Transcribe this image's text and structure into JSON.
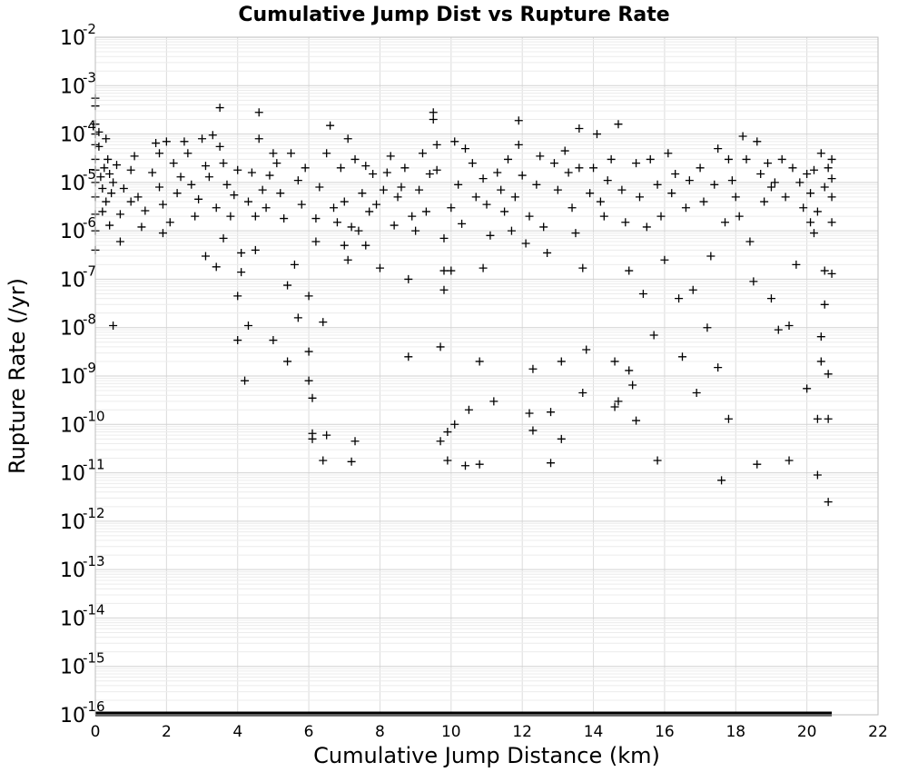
{
  "chart_data": {
    "type": "scatter",
    "title": "Cumulative Jump Dist vs Rupture Rate",
    "xlabel": "Cumulative Jump Distance (km)",
    "ylabel": "Rupture Rate (/yr)",
    "xlim": [
      0,
      22
    ],
    "ylim": [
      1e-16,
      0.01
    ],
    "xscale": "linear",
    "yscale": "log",
    "grid": true,
    "legend": "none",
    "marker": "plus",
    "color": "#000000",
    "xticks": [
      0,
      2,
      4,
      6,
      8,
      10,
      12,
      14,
      16,
      18,
      20,
      22
    ],
    "yticks": [
      {
        "value": 0.01,
        "base": "10",
        "exp": "-2"
      },
      {
        "value": 0.001,
        "base": "10",
        "exp": "-3"
      },
      {
        "value": 0.0001,
        "base": "10",
        "exp": "-4"
      },
      {
        "value": 1e-05,
        "base": "10",
        "exp": "-5"
      },
      {
        "value": 1e-06,
        "base": "10",
        "exp": "-6"
      },
      {
        "value": 1e-07,
        "base": "10",
        "exp": "-7"
      },
      {
        "value": 1e-08,
        "base": "10",
        "exp": "-8"
      },
      {
        "value": 1e-09,
        "base": "10",
        "exp": "-9"
      },
      {
        "value": 1e-10,
        "base": "10",
        "exp": "-10"
      },
      {
        "value": 1e-11,
        "base": "10",
        "exp": "-11"
      },
      {
        "value": 1e-12,
        "base": "10",
        "exp": "-12"
      },
      {
        "value": 1e-13,
        "base": "10",
        "exp": "-13"
      },
      {
        "value": 1e-14,
        "base": "10",
        "exp": "-14"
      },
      {
        "value": 1e-15,
        "base": "10",
        "exp": "-15"
      },
      {
        "value": 1e-16,
        "base": "10",
        "exp": "-16"
      }
    ],
    "floor_band": {
      "x": [
        0,
        20.7
      ],
      "y": 1e-16
    },
    "points": [
      {
        "x": 0.0,
        "y": 0.00055
      },
      {
        "x": 0.0,
        "y": 0.00038
      },
      {
        "x": 0.0,
        "y": 0.00016
      },
      {
        "x": 0.0,
        "y": 0.0001
      },
      {
        "x": 0.0,
        "y": 6e-05
      },
      {
        "x": 0.0,
        "y": 3e-05
      },
      {
        "x": 0.0,
        "y": 1.8e-05
      },
      {
        "x": 0.0,
        "y": 1e-05
      },
      {
        "x": 0.0,
        "y": 5e-06
      },
      {
        "x": 0.0,
        "y": 2.2e-06
      },
      {
        "x": 0.0,
        "y": 1e-06
      },
      {
        "x": 0.0,
        "y": 4e-07
      },
      {
        "x": 0.1,
        "y": 0.00011
      },
      {
        "x": 0.1,
        "y": 5.5e-05
      },
      {
        "x": 0.15,
        "y": 1.3e-05
      },
      {
        "x": 0.2,
        "y": 2.5e-06
      },
      {
        "x": 0.2,
        "y": 7.5e-06
      },
      {
        "x": 0.25,
        "y": 2e-05
      },
      {
        "x": 0.3,
        "y": 8e-05
      },
      {
        "x": 0.3,
        "y": 4e-06
      },
      {
        "x": 0.35,
        "y": 3e-05
      },
      {
        "x": 0.4,
        "y": 1.3e-06
      },
      {
        "x": 0.4,
        "y": 1.5e-05
      },
      {
        "x": 0.45,
        "y": 6e-06
      },
      {
        "x": 0.5,
        "y": 1.1e-08
      },
      {
        "x": 0.5,
        "y": 1e-05
      },
      {
        "x": 0.6,
        "y": 2.3e-05
      },
      {
        "x": 0.7,
        "y": 6e-07
      },
      {
        "x": 0.7,
        "y": 2.2e-06
      },
      {
        "x": 0.8,
        "y": 7.5e-06
      },
      {
        "x": 1.0,
        "y": 1.8e-05
      },
      {
        "x": 1.0,
        "y": 4e-06
      },
      {
        "x": 1.1,
        "y": 3.5e-05
      },
      {
        "x": 1.2,
        "y": 5e-06
      },
      {
        "x": 1.3,
        "y": 1.2e-06
      },
      {
        "x": 1.4,
        "y": 2.6e-06
      },
      {
        "x": 1.6,
        "y": 1.6e-05
      },
      {
        "x": 1.7,
        "y": 6.5e-05
      },
      {
        "x": 1.8,
        "y": 4e-05
      },
      {
        "x": 1.8,
        "y": 8e-06
      },
      {
        "x": 1.9,
        "y": 3.5e-06
      },
      {
        "x": 1.9,
        "y": 9e-07
      },
      {
        "x": 2.0,
        "y": 7e-05
      },
      {
        "x": 2.1,
        "y": 1.5e-06
      },
      {
        "x": 2.2,
        "y": 2.5e-05
      },
      {
        "x": 2.3,
        "y": 6e-06
      },
      {
        "x": 2.4,
        "y": 1.3e-05
      },
      {
        "x": 2.5,
        "y": 7e-05
      },
      {
        "x": 2.6,
        "y": 4e-05
      },
      {
        "x": 2.7,
        "y": 9e-06
      },
      {
        "x": 2.8,
        "y": 2e-06
      },
      {
        "x": 2.9,
        "y": 4.5e-06
      },
      {
        "x": 3.0,
        "y": 8e-05
      },
      {
        "x": 3.1,
        "y": 2.2e-05
      },
      {
        "x": 3.1,
        "y": 3e-07
      },
      {
        "x": 3.2,
        "y": 1.3e-05
      },
      {
        "x": 3.3,
        "y": 9.5e-05
      },
      {
        "x": 3.4,
        "y": 3e-06
      },
      {
        "x": 3.4,
        "y": 1.8e-07
      },
      {
        "x": 3.5,
        "y": 0.00035
      },
      {
        "x": 3.5,
        "y": 5.5e-05
      },
      {
        "x": 3.6,
        "y": 2.5e-05
      },
      {
        "x": 3.6,
        "y": 7e-07
      },
      {
        "x": 3.7,
        "y": 9e-06
      },
      {
        "x": 3.8,
        "y": 2e-06
      },
      {
        "x": 3.9,
        "y": 5.5e-06
      },
      {
        "x": 4.0,
        "y": 1.8e-05
      },
      {
        "x": 4.0,
        "y": 4.5e-08
      },
      {
        "x": 4.0,
        "y": 5.5e-09
      },
      {
        "x": 4.1,
        "y": 3.5e-07
      },
      {
        "x": 4.1,
        "y": 1.4e-07
      },
      {
        "x": 4.2,
        "y": 8e-10
      },
      {
        "x": 4.3,
        "y": 1.1e-08
      },
      {
        "x": 4.3,
        "y": 4e-06
      },
      {
        "x": 4.4,
        "y": 1.6e-05
      },
      {
        "x": 4.5,
        "y": 2e-06
      },
      {
        "x": 4.5,
        "y": 4e-07
      },
      {
        "x": 4.6,
        "y": 0.00028
      },
      {
        "x": 4.6,
        "y": 8e-05
      },
      {
        "x": 4.7,
        "y": 7e-06
      },
      {
        "x": 4.8,
        "y": 3e-06
      },
      {
        "x": 4.9,
        "y": 1.4e-05
      },
      {
        "x": 5.0,
        "y": 4e-05
      },
      {
        "x": 5.0,
        "y": 5.5e-09
      },
      {
        "x": 5.1,
        "y": 2.5e-05
      },
      {
        "x": 5.2,
        "y": 6e-06
      },
      {
        "x": 5.3,
        "y": 1.8e-06
      },
      {
        "x": 5.4,
        "y": 7.5e-08
      },
      {
        "x": 5.4,
        "y": 2e-09
      },
      {
        "x": 5.5,
        "y": 4e-05
      },
      {
        "x": 5.6,
        "y": 2e-07
      },
      {
        "x": 5.7,
        "y": 1.6e-08
      },
      {
        "x": 5.7,
        "y": 1.1e-05
      },
      {
        "x": 5.8,
        "y": 3.5e-06
      },
      {
        "x": 5.9,
        "y": 2e-05
      },
      {
        "x": 6.0,
        "y": 4.5e-08
      },
      {
        "x": 6.0,
        "y": 3.2e-09
      },
      {
        "x": 6.0,
        "y": 8e-10
      },
      {
        "x": 6.1,
        "y": 3.5e-10
      },
      {
        "x": 6.1,
        "y": 6.5e-11
      },
      {
        "x": 6.1,
        "y": 5e-11
      },
      {
        "x": 6.2,
        "y": 6e-07
      },
      {
        "x": 6.2,
        "y": 1.8e-06
      },
      {
        "x": 6.3,
        "y": 8e-06
      },
      {
        "x": 6.4,
        "y": 1.3e-08
      },
      {
        "x": 6.4,
        "y": 1.8e-11
      },
      {
        "x": 6.5,
        "y": 4e-05
      },
      {
        "x": 6.5,
        "y": 6e-11
      },
      {
        "x": 6.6,
        "y": 0.00015
      },
      {
        "x": 6.7,
        "y": 3e-06
      },
      {
        "x": 6.8,
        "y": 1.5e-06
      },
      {
        "x": 6.9,
        "y": 2e-05
      },
      {
        "x": 7.0,
        "y": 5e-07
      },
      {
        "x": 7.0,
        "y": 4e-06
      },
      {
        "x": 7.1,
        "y": 8e-05
      },
      {
        "x": 7.1,
        "y": 2.5e-07
      },
      {
        "x": 7.2,
        "y": 1.7e-11
      },
      {
        "x": 7.2,
        "y": 1.2e-06
      },
      {
        "x": 7.3,
        "y": 4.5e-11
      },
      {
        "x": 7.3,
        "y": 3e-05
      },
      {
        "x": 7.4,
        "y": 1e-06
      },
      {
        "x": 7.5,
        "y": 6e-06
      },
      {
        "x": 7.6,
        "y": 2.2e-05
      },
      {
        "x": 7.6,
        "y": 5e-07
      },
      {
        "x": 7.7,
        "y": 2.5e-06
      },
      {
        "x": 7.8,
        "y": 1.5e-05
      },
      {
        "x": 7.9,
        "y": 3.5e-06
      },
      {
        "x": 8.0,
        "y": 1.7e-07
      },
      {
        "x": 8.1,
        "y": 7e-06
      },
      {
        "x": 8.2,
        "y": 1.6e-05
      },
      {
        "x": 8.3,
        "y": 3.5e-05
      },
      {
        "x": 8.4,
        "y": 1.3e-06
      },
      {
        "x": 8.5,
        "y": 5e-06
      },
      {
        "x": 8.6,
        "y": 8e-06
      },
      {
        "x": 8.7,
        "y": 2e-05
      },
      {
        "x": 8.8,
        "y": 1e-07
      },
      {
        "x": 8.8,
        "y": 2.5e-09
      },
      {
        "x": 8.9,
        "y": 2e-06
      },
      {
        "x": 9.0,
        "y": 1e-06
      },
      {
        "x": 9.1,
        "y": 7e-06
      },
      {
        "x": 9.2,
        "y": 4e-05
      },
      {
        "x": 9.3,
        "y": 2.5e-06
      },
      {
        "x": 9.4,
        "y": 1.5e-05
      },
      {
        "x": 9.5,
        "y": 0.00028
      },
      {
        "x": 9.5,
        "y": 0.0002
      },
      {
        "x": 9.6,
        "y": 6e-05
      },
      {
        "x": 9.6,
        "y": 1.8e-05
      },
      {
        "x": 9.7,
        "y": 4e-09
      },
      {
        "x": 9.7,
        "y": 4.5e-11
      },
      {
        "x": 9.8,
        "y": 1.5e-07
      },
      {
        "x": 9.8,
        "y": 6e-08
      },
      {
        "x": 9.8,
        "y": 7e-07
      },
      {
        "x": 9.9,
        "y": 7e-11
      },
      {
        "x": 9.9,
        "y": 1.8e-11
      },
      {
        "x": 10.0,
        "y": 1.5e-07
      },
      {
        "x": 10.0,
        "y": 3e-06
      },
      {
        "x": 10.1,
        "y": 1e-10
      },
      {
        "x": 10.1,
        "y": 7e-05
      },
      {
        "x": 10.2,
        "y": 9e-06
      },
      {
        "x": 10.3,
        "y": 1.4e-06
      },
      {
        "x": 10.4,
        "y": 5e-05
      },
      {
        "x": 10.4,
        "y": 1.4e-11
      },
      {
        "x": 10.5,
        "y": 2e-10
      },
      {
        "x": 10.6,
        "y": 2.5e-05
      },
      {
        "x": 10.7,
        "y": 5e-06
      },
      {
        "x": 10.8,
        "y": 2e-09
      },
      {
        "x": 10.8,
        "y": 1.5e-11
      },
      {
        "x": 10.9,
        "y": 1.7e-07
      },
      {
        "x": 10.9,
        "y": 1.2e-05
      },
      {
        "x": 11.0,
        "y": 3.5e-06
      },
      {
        "x": 11.1,
        "y": 8e-07
      },
      {
        "x": 11.2,
        "y": 3e-10
      },
      {
        "x": 11.3,
        "y": 1.6e-05
      },
      {
        "x": 11.4,
        "y": 7e-06
      },
      {
        "x": 11.5,
        "y": 2.5e-06
      },
      {
        "x": 11.6,
        "y": 3e-05
      },
      {
        "x": 11.7,
        "y": 1e-06
      },
      {
        "x": 11.8,
        "y": 5e-06
      },
      {
        "x": 11.9,
        "y": 0.00019
      },
      {
        "x": 11.9,
        "y": 6e-05
      },
      {
        "x": 12.0,
        "y": 1.4e-05
      },
      {
        "x": 12.1,
        "y": 5.5e-07
      },
      {
        "x": 12.2,
        "y": 2e-06
      },
      {
        "x": 12.2,
        "y": 1.7e-10
      },
      {
        "x": 12.3,
        "y": 1.4e-09
      },
      {
        "x": 12.3,
        "y": 7.5e-11
      },
      {
        "x": 12.4,
        "y": 9e-06
      },
      {
        "x": 12.5,
        "y": 3.5e-05
      },
      {
        "x": 12.6,
        "y": 1.2e-06
      },
      {
        "x": 12.7,
        "y": 3.5e-07
      },
      {
        "x": 12.8,
        "y": 1.8e-10
      },
      {
        "x": 12.8,
        "y": 1.6e-11
      },
      {
        "x": 12.9,
        "y": 2.5e-05
      },
      {
        "x": 13.0,
        "y": 7e-06
      },
      {
        "x": 13.1,
        "y": 2e-09
      },
      {
        "x": 13.1,
        "y": 5e-11
      },
      {
        "x": 13.2,
        "y": 4.5e-05
      },
      {
        "x": 13.3,
        "y": 1.6e-05
      },
      {
        "x": 13.4,
        "y": 3e-06
      },
      {
        "x": 13.5,
        "y": 9e-07
      },
      {
        "x": 13.6,
        "y": 0.00013
      },
      {
        "x": 13.6,
        "y": 2e-05
      },
      {
        "x": 13.7,
        "y": 4.5e-10
      },
      {
        "x": 13.7,
        "y": 1.7e-07
      },
      {
        "x": 13.8,
        "y": 3.5e-09
      },
      {
        "x": 13.9,
        "y": 6e-06
      },
      {
        "x": 14.0,
        "y": 2e-05
      },
      {
        "x": 14.1,
        "y": 0.0001
      },
      {
        "x": 14.2,
        "y": 4e-06
      },
      {
        "x": 14.3,
        "y": 2e-06
      },
      {
        "x": 14.4,
        "y": 1.1e-05
      },
      {
        "x": 14.5,
        "y": 3e-05
      },
      {
        "x": 14.6,
        "y": 2e-09
      },
      {
        "x": 14.6,
        "y": 2.3e-10
      },
      {
        "x": 14.7,
        "y": 0.00016
      },
      {
        "x": 14.7,
        "y": 3e-10
      },
      {
        "x": 14.8,
        "y": 7e-06
      },
      {
        "x": 14.9,
        "y": 1.5e-06
      },
      {
        "x": 15.0,
        "y": 1.5e-07
      },
      {
        "x": 15.0,
        "y": 1.3e-09
      },
      {
        "x": 15.1,
        "y": 6.5e-10
      },
      {
        "x": 15.2,
        "y": 1.2e-10
      },
      {
        "x": 15.2,
        "y": 2.5e-05
      },
      {
        "x": 15.3,
        "y": 5e-06
      },
      {
        "x": 15.4,
        "y": 5e-08
      },
      {
        "x": 15.5,
        "y": 1.2e-06
      },
      {
        "x": 15.6,
        "y": 3e-05
      },
      {
        "x": 15.7,
        "y": 7e-09
      },
      {
        "x": 15.8,
        "y": 1.8e-11
      },
      {
        "x": 15.8,
        "y": 9e-06
      },
      {
        "x": 15.9,
        "y": 2e-06
      },
      {
        "x": 16.0,
        "y": 2.5e-07
      },
      {
        "x": 16.1,
        "y": 4e-05
      },
      {
        "x": 16.2,
        "y": 6e-06
      },
      {
        "x": 16.3,
        "y": 1.5e-05
      },
      {
        "x": 16.4,
        "y": 4e-08
      },
      {
        "x": 16.5,
        "y": 2.5e-09
      },
      {
        "x": 16.6,
        "y": 3e-06
      },
      {
        "x": 16.7,
        "y": 1.1e-05
      },
      {
        "x": 16.8,
        "y": 6e-08
      },
      {
        "x": 16.9,
        "y": 4.5e-10
      },
      {
        "x": 17.0,
        "y": 2e-05
      },
      {
        "x": 17.1,
        "y": 4e-06
      },
      {
        "x": 17.2,
        "y": 1e-08
      },
      {
        "x": 17.3,
        "y": 3e-07
      },
      {
        "x": 17.4,
        "y": 9e-06
      },
      {
        "x": 17.5,
        "y": 5e-05
      },
      {
        "x": 17.5,
        "y": 1.5e-09
      },
      {
        "x": 17.6,
        "y": 7e-12
      },
      {
        "x": 17.7,
        "y": 1.5e-06
      },
      {
        "x": 17.8,
        "y": 1.3e-10
      },
      {
        "x": 17.8,
        "y": 3e-05
      },
      {
        "x": 17.9,
        "y": 1.1e-05
      },
      {
        "x": 18.0,
        "y": 5e-06
      },
      {
        "x": 18.1,
        "y": 2e-06
      },
      {
        "x": 18.2,
        "y": 9e-05
      },
      {
        "x": 18.3,
        "y": 3e-05
      },
      {
        "x": 18.4,
        "y": 6e-07
      },
      {
        "x": 18.5,
        "y": 9e-08
      },
      {
        "x": 18.6,
        "y": 1.5e-11
      },
      {
        "x": 18.6,
        "y": 7e-05
      },
      {
        "x": 18.7,
        "y": 1.5e-05
      },
      {
        "x": 18.8,
        "y": 4e-06
      },
      {
        "x": 18.9,
        "y": 2.5e-05
      },
      {
        "x": 19.0,
        "y": 4e-08
      },
      {
        "x": 19.0,
        "y": 8e-06
      },
      {
        "x": 19.1,
        "y": 1e-05
      },
      {
        "x": 19.2,
        "y": 9e-09
      },
      {
        "x": 19.3,
        "y": 3e-05
      },
      {
        "x": 19.4,
        "y": 5e-06
      },
      {
        "x": 19.5,
        "y": 1.8e-11
      },
      {
        "x": 19.5,
        "y": 1.1e-08
      },
      {
        "x": 19.6,
        "y": 2e-05
      },
      {
        "x": 19.7,
        "y": 2e-07
      },
      {
        "x": 19.8,
        "y": 1e-05
      },
      {
        "x": 19.9,
        "y": 3e-06
      },
      {
        "x": 20.0,
        "y": 5.5e-10
      },
      {
        "x": 20.0,
        "y": 1.5e-05
      },
      {
        "x": 20.1,
        "y": 1.5e-06
      },
      {
        "x": 20.2,
        "y": 9e-07
      },
      {
        "x": 20.3,
        "y": 9e-12
      },
      {
        "x": 20.3,
        "y": 1.3e-10
      },
      {
        "x": 20.4,
        "y": 6.5e-09
      },
      {
        "x": 20.4,
        "y": 2e-09
      },
      {
        "x": 20.5,
        "y": 3e-08
      },
      {
        "x": 20.5,
        "y": 1.5e-07
      },
      {
        "x": 20.6,
        "y": 2.5e-12
      },
      {
        "x": 20.6,
        "y": 1.3e-10
      },
      {
        "x": 20.6,
        "y": 1.1e-09
      },
      {
        "x": 20.7,
        "y": 1.3e-07
      },
      {
        "x": 20.7,
        "y": 1.5e-06
      },
      {
        "x": 20.7,
        "y": 1.2e-05
      },
      {
        "x": 20.7,
        "y": 3e-05
      },
      {
        "x": 20.7,
        "y": 5e-06
      },
      {
        "x": 20.6,
        "y": 2e-05
      },
      {
        "x": 20.5,
        "y": 8e-06
      },
      {
        "x": 20.4,
        "y": 4e-05
      },
      {
        "x": 20.3,
        "y": 2.5e-06
      },
      {
        "x": 20.2,
        "y": 1.8e-05
      },
      {
        "x": 20.1,
        "y": 6e-06
      }
    ]
  }
}
